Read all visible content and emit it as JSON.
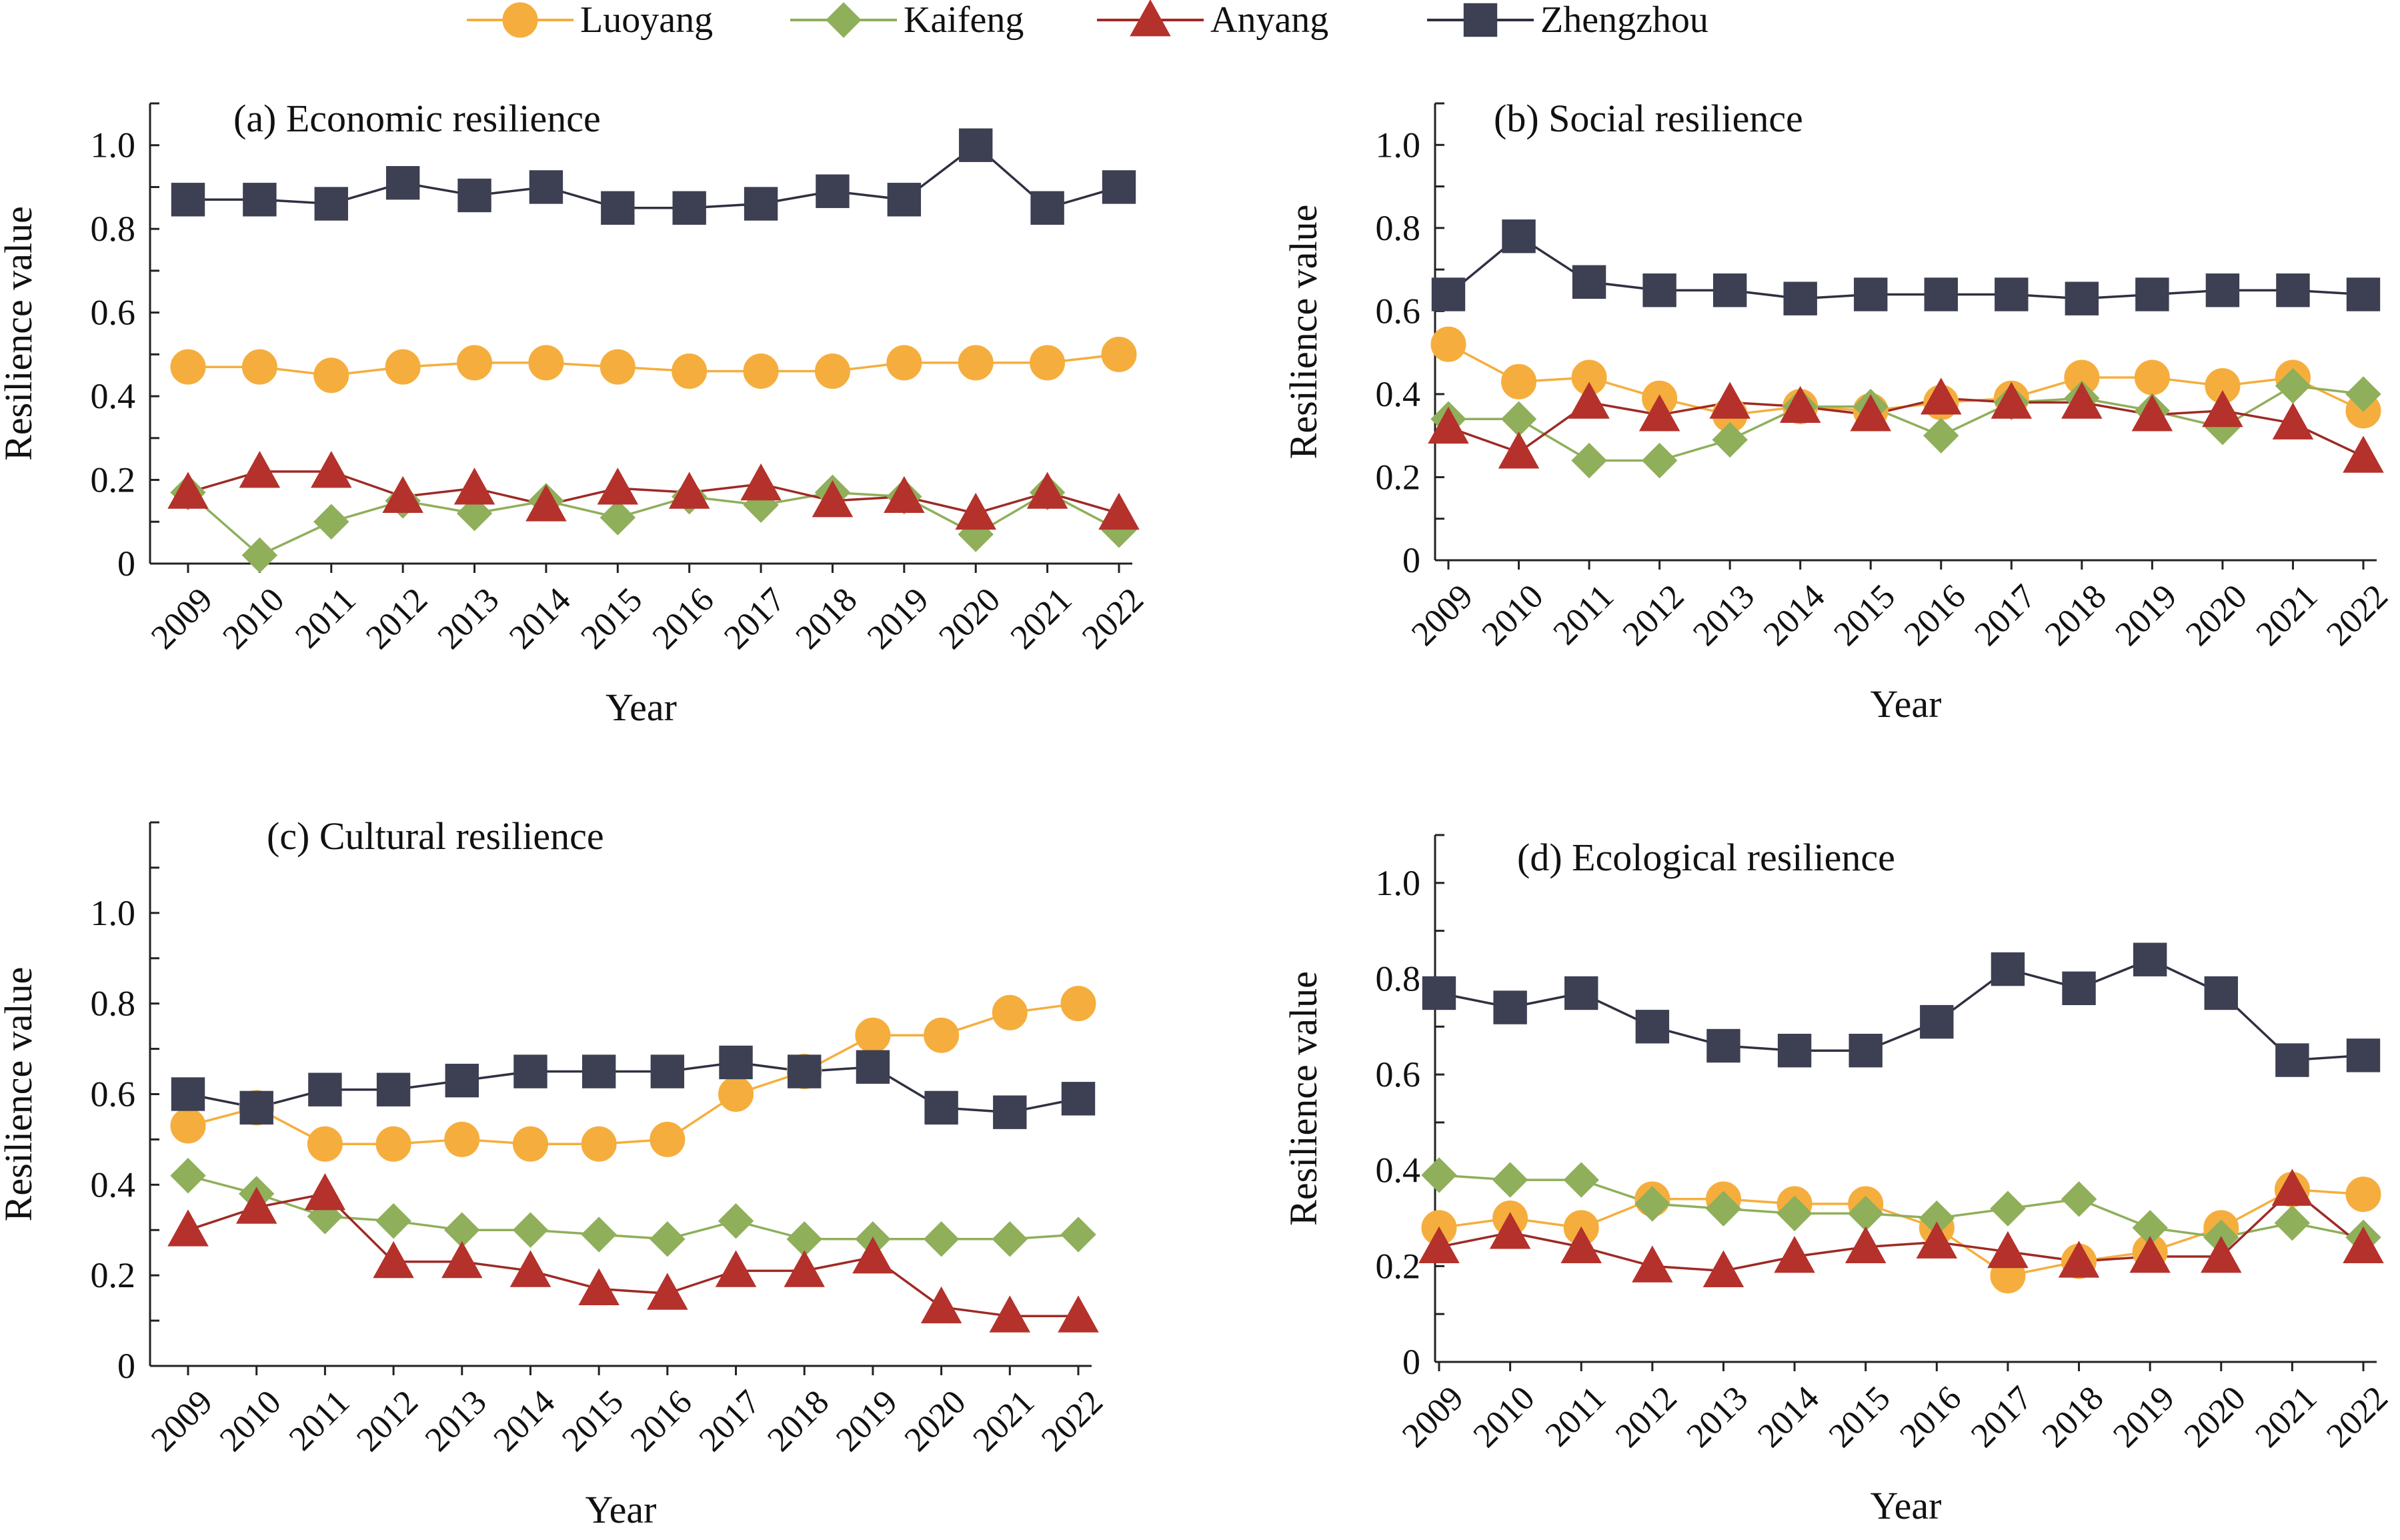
{
  "legend": {
    "items": [
      {
        "label": "Luoyang",
        "color": "#F5AE3D",
        "line": "#F5AE3D",
        "marker": "circle"
      },
      {
        "label": "Kaifeng",
        "color": "#8FAF5A",
        "line": "#8FAF5A",
        "marker": "diamond"
      },
      {
        "label": "Anyang",
        "color": "#B5312B",
        "line": "#9E2A25",
        "marker": "triangle"
      },
      {
        "label": "Zhengzhou",
        "color": "#3D3F52",
        "line": "#2F3142",
        "marker": "square"
      }
    ]
  },
  "chart_data": [
    {
      "type": "line",
      "title": "(a) Economic resilience",
      "xlabel": "Year",
      "ylabel": "Resilience value",
      "ylim": [
        0,
        1.1
      ],
      "yticks": [
        "0",
        "0.2",
        "0.4",
        "0.6",
        "0.8",
        "1.0"
      ],
      "x": [
        "2009",
        "2010",
        "2011",
        "2012",
        "2013",
        "2014",
        "2015",
        "2016",
        "2017",
        "2018",
        "2019",
        "2020",
        "2021",
        "2022"
      ],
      "series": [
        {
          "name": "Luoyang",
          "values": [
            0.47,
            0.47,
            0.45,
            0.47,
            0.48,
            0.48,
            0.47,
            0.46,
            0.46,
            0.46,
            0.48,
            0.48,
            0.48,
            0.5
          ]
        },
        {
          "name": "Kaifeng",
          "values": [
            0.17,
            0.02,
            0.1,
            0.15,
            0.12,
            0.15,
            0.11,
            0.16,
            0.14,
            0.17,
            0.16,
            0.07,
            0.17,
            0.08
          ]
        },
        {
          "name": "Anyang",
          "values": [
            0.17,
            0.22,
            0.22,
            0.16,
            0.18,
            0.14,
            0.18,
            0.17,
            0.19,
            0.15,
            0.16,
            0.12,
            0.17,
            0.12
          ]
        },
        {
          "name": "Zhengzhou",
          "values": [
            0.87,
            0.87,
            0.86,
            0.91,
            0.88,
            0.9,
            0.85,
            0.85,
            0.86,
            0.89,
            0.87,
            1.0,
            0.85,
            0.9
          ]
        }
      ]
    },
    {
      "type": "line",
      "title": "(b) Social resilience",
      "xlabel": "Year",
      "ylabel": "Resilience value",
      "ylim": [
        0,
        1.1
      ],
      "yticks": [
        "0",
        "0.2",
        "0.4",
        "0.6",
        "0.8",
        "1.0"
      ],
      "x": [
        "2009",
        "2010",
        "2011",
        "2012",
        "2013",
        "2014",
        "2015",
        "2016",
        "2017",
        "2018",
        "2019",
        "2020",
        "2021",
        "2022"
      ],
      "series": [
        {
          "name": "Luoyang",
          "values": [
            0.52,
            0.43,
            0.44,
            0.39,
            0.35,
            0.37,
            0.36,
            0.38,
            0.39,
            0.44,
            0.44,
            0.42,
            0.44,
            0.36
          ]
        },
        {
          "name": "Kaifeng",
          "values": [
            0.34,
            0.34,
            0.24,
            0.24,
            0.29,
            0.37,
            0.37,
            0.3,
            0.38,
            0.39,
            0.36,
            0.32,
            0.42,
            0.4
          ]
        },
        {
          "name": "Anyang",
          "values": [
            0.32,
            0.26,
            0.38,
            0.35,
            0.38,
            0.37,
            0.35,
            0.39,
            0.38,
            0.38,
            0.35,
            0.36,
            0.33,
            0.25
          ]
        },
        {
          "name": "Zhengzhou",
          "values": [
            0.64,
            0.78,
            0.67,
            0.65,
            0.65,
            0.63,
            0.64,
            0.64,
            0.64,
            0.63,
            0.64,
            0.65,
            0.65,
            0.64
          ]
        }
      ]
    },
    {
      "type": "line",
      "title": "(c) Cultural resilience",
      "xlabel": "Year",
      "ylabel": "Resilience value",
      "ylim": [
        0,
        1.2
      ],
      "yticks": [
        "0",
        "0.2",
        "0.4",
        "0.6",
        "0.8",
        "1.0"
      ],
      "x": [
        "2009",
        "2010",
        "2011",
        "2012",
        "2013",
        "2014",
        "2015",
        "2016",
        "2017",
        "2018",
        "2019",
        "2020",
        "2021",
        "2022"
      ],
      "series": [
        {
          "name": "Luoyang",
          "values": [
            0.53,
            0.57,
            0.49,
            0.49,
            0.5,
            0.49,
            0.49,
            0.5,
            0.6,
            0.65,
            0.73,
            0.73,
            0.78,
            0.8
          ]
        },
        {
          "name": "Kaifeng",
          "values": [
            0.42,
            0.38,
            0.33,
            0.32,
            0.3,
            0.3,
            0.29,
            0.28,
            0.32,
            0.28,
            0.28,
            0.28,
            0.28,
            0.29
          ]
        },
        {
          "name": "Anyang",
          "values": [
            0.3,
            0.35,
            0.38,
            0.23,
            0.23,
            0.21,
            0.17,
            0.16,
            0.21,
            0.21,
            0.24,
            0.13,
            0.11,
            0.11
          ]
        },
        {
          "name": "Zhengzhou",
          "values": [
            0.6,
            0.57,
            0.61,
            0.61,
            0.63,
            0.65,
            0.65,
            0.65,
            0.67,
            0.65,
            0.66,
            0.57,
            0.56,
            0.59
          ]
        }
      ]
    },
    {
      "type": "line",
      "title": "(d) Ecological resilience",
      "xlabel": "Year",
      "ylabel": "Resilience value",
      "ylim": [
        0,
        1.1
      ],
      "yticks": [
        "0",
        "0.2",
        "0.4",
        "0.6",
        "0.8",
        "1.0"
      ],
      "x": [
        "2009",
        "2010",
        "2011",
        "2012",
        "2013",
        "2014",
        "2015",
        "2016",
        "2017",
        "2018",
        "2019",
        "2020",
        "2021",
        "2022"
      ],
      "series": [
        {
          "name": "Luoyang",
          "values": [
            0.28,
            0.3,
            0.28,
            0.34,
            0.34,
            0.33,
            0.33,
            0.28,
            0.18,
            0.21,
            0.23,
            0.28,
            0.36,
            0.35
          ]
        },
        {
          "name": "Kaifeng",
          "values": [
            0.39,
            0.38,
            0.38,
            0.33,
            0.32,
            0.31,
            0.31,
            0.3,
            0.32,
            0.34,
            0.28,
            0.26,
            0.29,
            0.26
          ]
        },
        {
          "name": "Anyang",
          "values": [
            0.24,
            0.27,
            0.24,
            0.2,
            0.19,
            0.22,
            0.24,
            0.25,
            0.23,
            0.21,
            0.22,
            0.22,
            0.36,
            0.24
          ]
        },
        {
          "name": "Zhengzhou",
          "values": [
            0.77,
            0.74,
            0.77,
            0.7,
            0.66,
            0.65,
            0.65,
            0.71,
            0.82,
            0.78,
            0.84,
            0.77,
            0.63,
            0.64
          ]
        }
      ]
    }
  ]
}
